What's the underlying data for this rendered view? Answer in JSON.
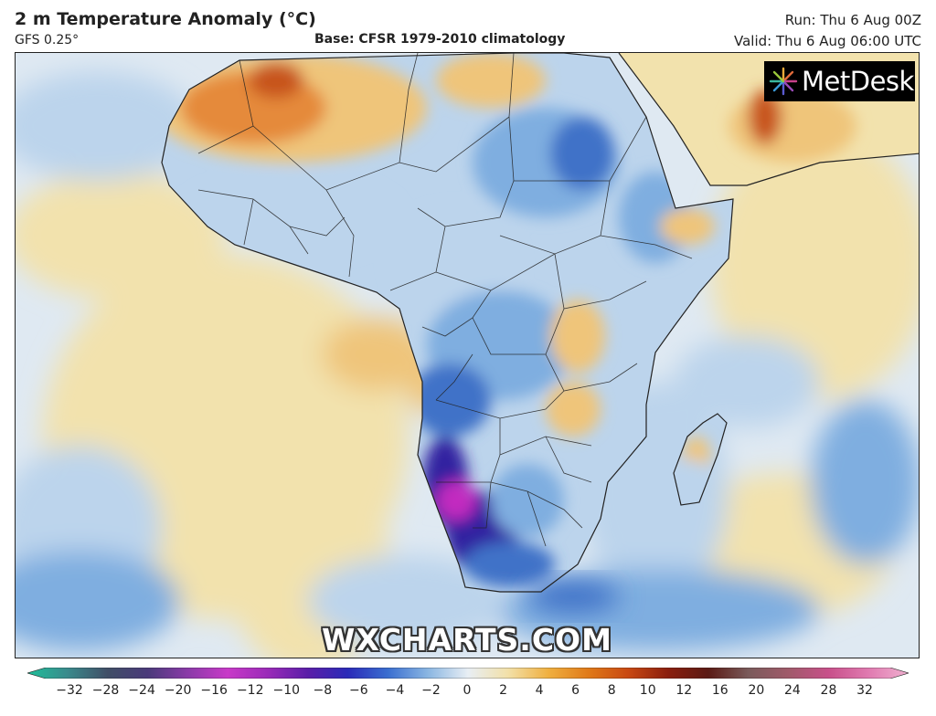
{
  "header": {
    "title": "2 m Temperature Anomaly (°C)",
    "model": "GFS 0.25°",
    "base": "Base: CFSR 1979-2010 climatology",
    "run": "Run: Thu 6 Aug 00Z",
    "valid": "Valid: Thu 6 Aug 06:00 UTC"
  },
  "logo": {
    "text": "MetDesk",
    "icon": "metdesk-burst-icon"
  },
  "watermark": "WXCHARTS.COM",
  "legend": {
    "ticks": [
      "−32",
      "−28",
      "−24",
      "−20",
      "−16",
      "−12",
      "−10",
      "−8",
      "−6",
      "−4",
      "−2",
      "0",
      "2",
      "4",
      "6",
      "8",
      "10",
      "12",
      "16",
      "20",
      "24",
      "28",
      "32"
    ],
    "colors": [
      "#1fbf9a",
      "#3a8a8c",
      "#404e66",
      "#4a3a7a",
      "#8a3aa8",
      "#c83ac8",
      "#9a2ab8",
      "#5a1ea8",
      "#2a2ab8",
      "#3a6ed0",
      "#8ab6e2",
      "#e8eef4",
      "#f2e0a8",
      "#f0b040",
      "#e07a18",
      "#c84812",
      "#8a1e0e",
      "#5a1a14",
      "#7a5a5a",
      "#a05a6a",
      "#c8508a",
      "#e07ab0",
      "#f0b0d0"
    ]
  },
  "map": {
    "colors": {
      "ocean_neutral": "#dfe9f2",
      "warm_light": "#f2e2ad",
      "warm": "#efc57a",
      "hot": "#e58a3a",
      "very_hot": "#c8541a",
      "cool_light": "#bcd4ec",
      "cool": "#7faee0",
      "cold": "#3f72c8",
      "very_cold": "#3020a0",
      "extreme_cold": "#c22ac0"
    }
  }
}
